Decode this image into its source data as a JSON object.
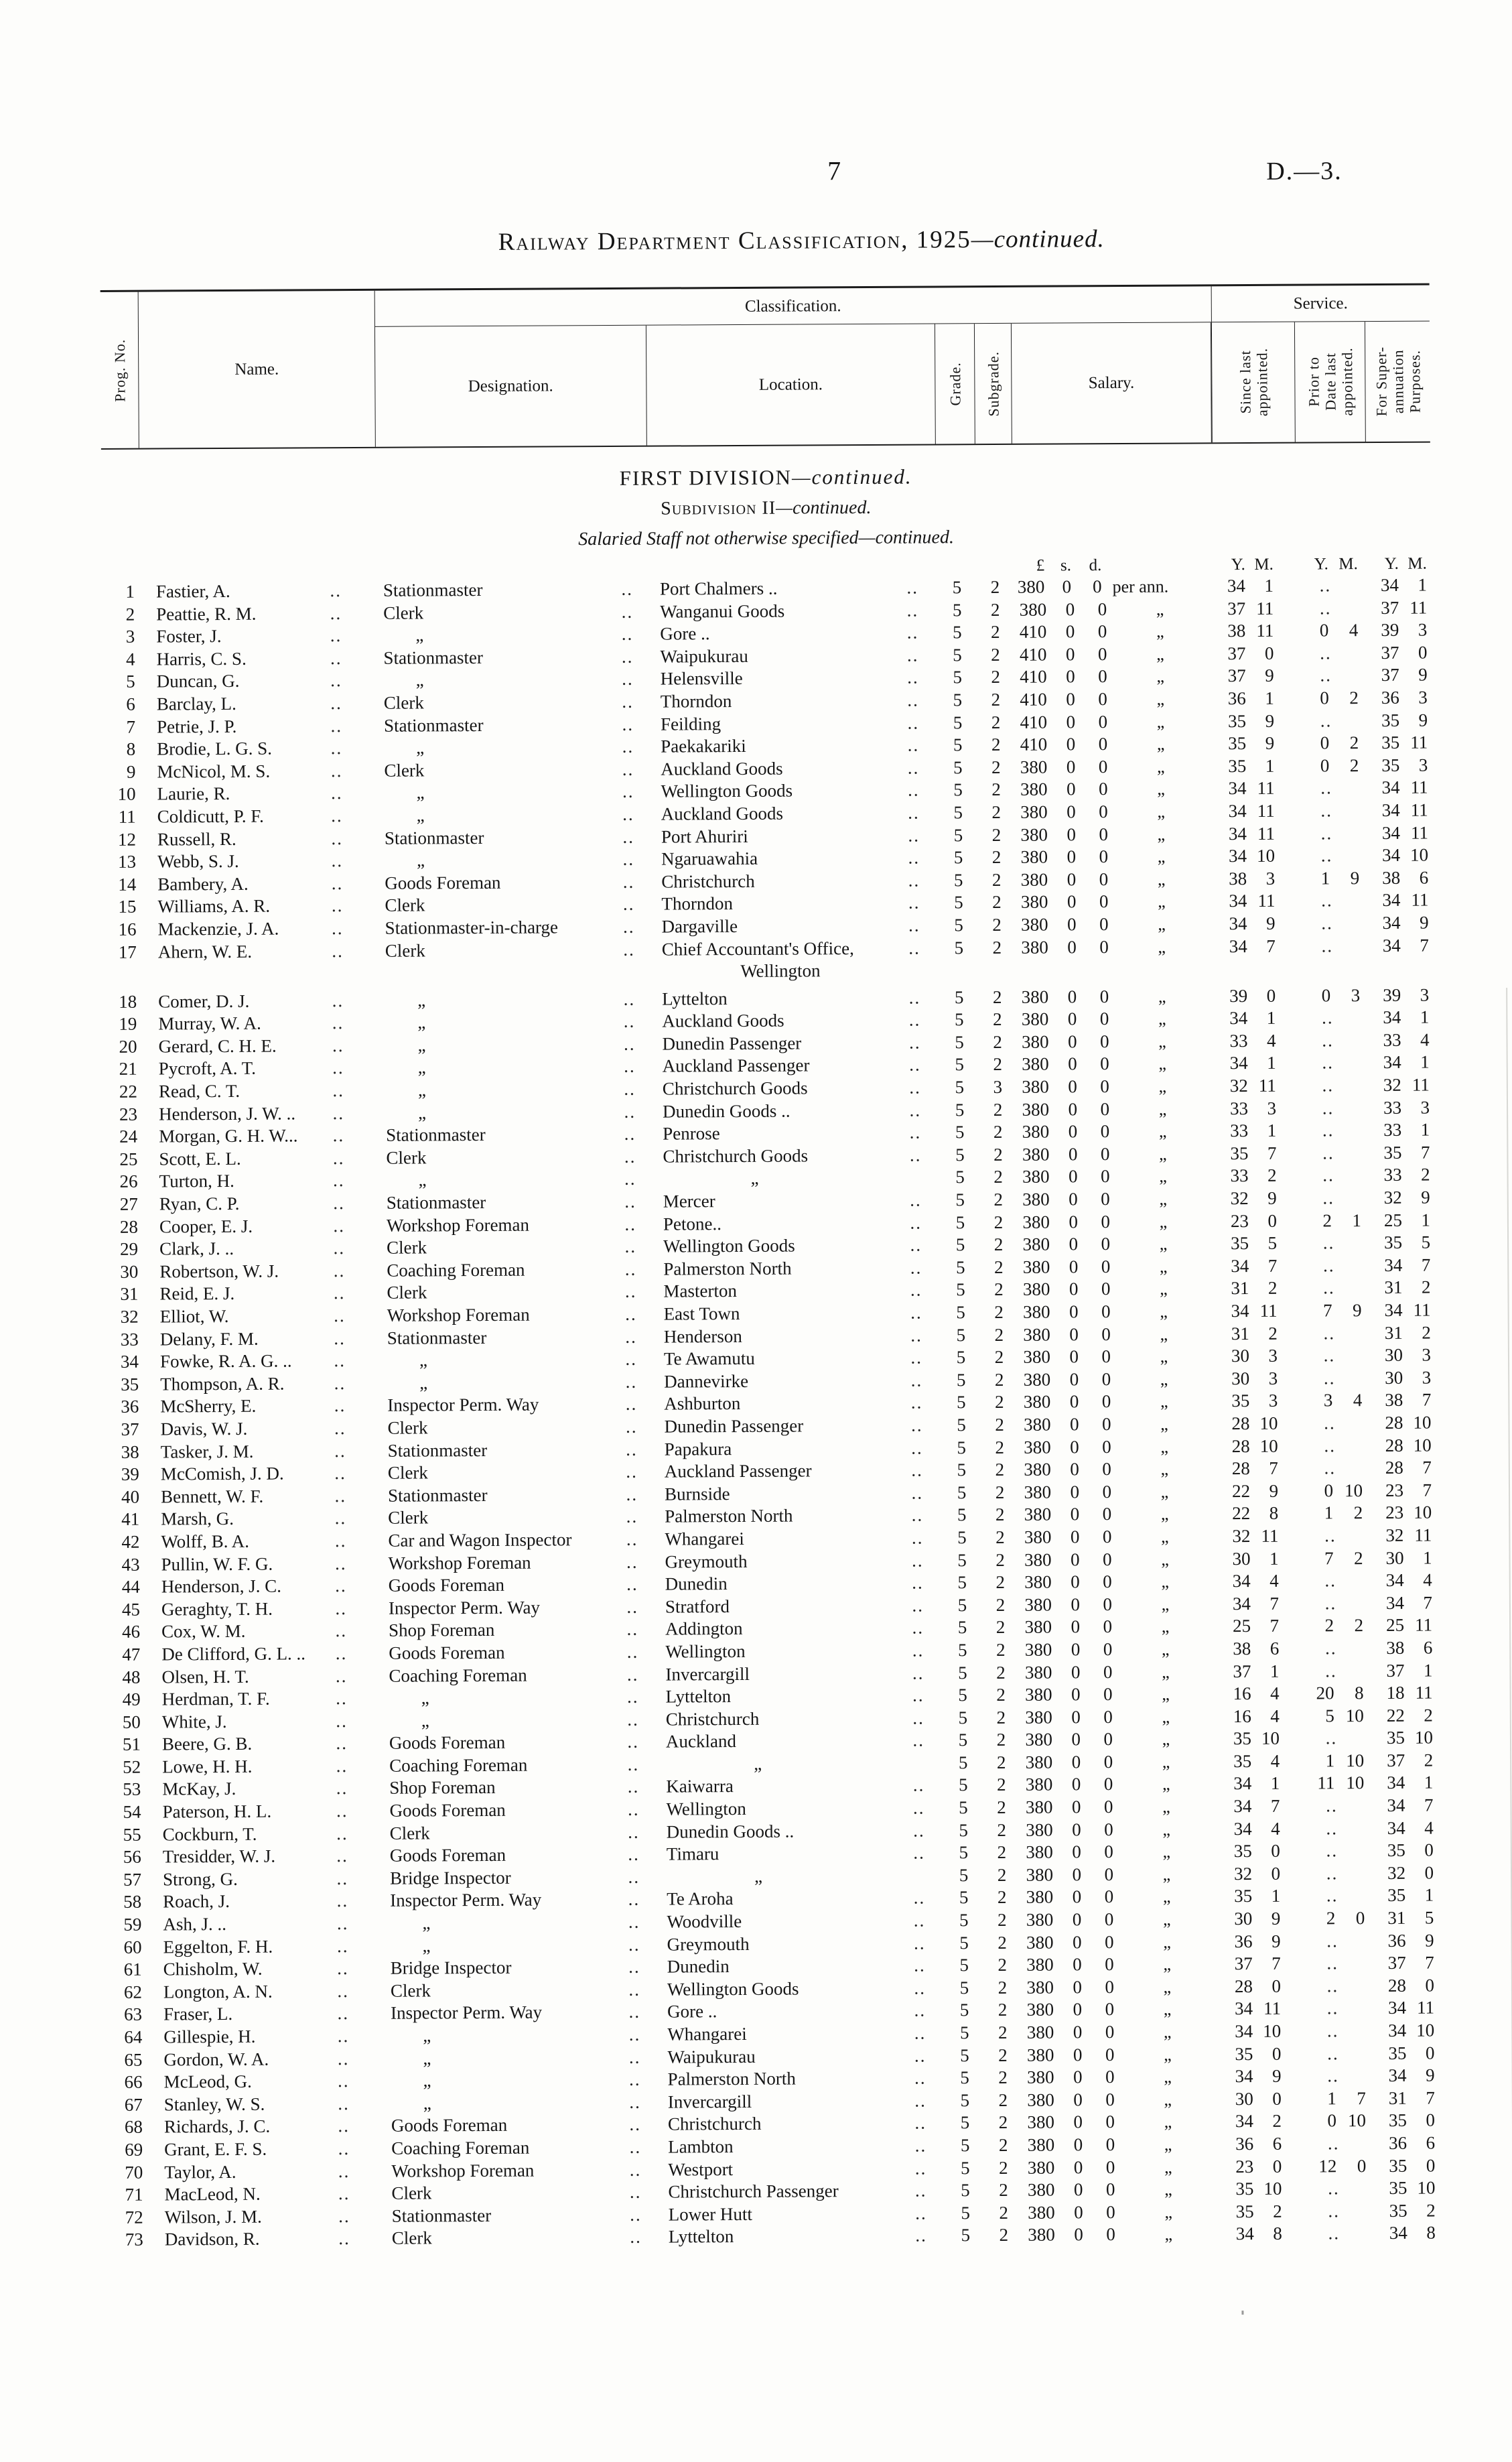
{
  "page": {
    "number": "7",
    "doc_ref": "D.—3."
  },
  "title": {
    "main": "Railway Department Classification, 1925",
    "continued": "—continued."
  },
  "headers": {
    "prog_no": "Prog. No.",
    "name": "Name.",
    "classification": "Classification.",
    "service": "Service.",
    "designation": "Designation.",
    "location": "Location.",
    "grade": "Grade.",
    "subgrade": "Subgrade.",
    "salary": "Salary.",
    "since_lines": [
      "Since last",
      "appointed."
    ],
    "prior_lines": [
      "Prior to",
      "Date last",
      "appointed."
    ],
    "super_lines": [
      "For Super-",
      "annuation",
      "Purposes."
    ]
  },
  "sections": {
    "division": "FIRST DIVISION",
    "division_cont": "—continued.",
    "subdivision": "Subdivision II",
    "subdivision_cont": "—continued.",
    "staff": "Salaried Staff not otherwise specified",
    "staff_cont": "—continued."
  },
  "units": {
    "currency": [
      "£",
      "s.",
      "d."
    ],
    "ym": [
      "Y.",
      "M."
    ]
  },
  "misc": {
    "dots": "..",
    "ditto": "„"
  },
  "rows": [
    [
      "1",
      "Fastier, A.",
      "Stationmaster",
      "Port Chalmers ..",
      "5",
      "2",
      "380",
      "0",
      "0",
      "per ann.",
      "34",
      "1",
      "..",
      "",
      "34",
      "1",
      ""
    ],
    [
      "2",
      "Peattie, R. M.",
      "Clerk",
      "Wanganui Goods",
      "5",
      "2",
      "380",
      "0",
      "0",
      "„",
      "37",
      "11",
      "..",
      "",
      "37",
      "11",
      ""
    ],
    [
      "3",
      "Foster, J.",
      "„",
      "Gore ..",
      "5",
      "2",
      "410",
      "0",
      "0",
      "„",
      "38",
      "11",
      "0",
      "4",
      "39",
      "3",
      ""
    ],
    [
      "4",
      "Harris, C. S.",
      "Stationmaster",
      "Waipukurau",
      "5",
      "2",
      "410",
      "0",
      "0",
      "„",
      "37",
      "0",
      "..",
      "",
      "37",
      "0",
      ""
    ],
    [
      "5",
      "Duncan, G.",
      "„",
      "Helensville",
      "5",
      "2",
      "410",
      "0",
      "0",
      "„",
      "37",
      "9",
      "..",
      "",
      "37",
      "9",
      ""
    ],
    [
      "6",
      "Barclay, L.",
      "Clerk",
      "Thorndon",
      "5",
      "2",
      "410",
      "0",
      "0",
      "„",
      "36",
      "1",
      "0",
      "2",
      "36",
      "3",
      ""
    ],
    [
      "7",
      "Petrie, J. P.",
      "Stationmaster",
      "Feilding",
      "5",
      "2",
      "410",
      "0",
      "0",
      "„",
      "35",
      "9",
      "..",
      "",
      "35",
      "9",
      ""
    ],
    [
      "8",
      "Brodie, L. G. S.",
      "„",
      "Paekakariki",
      "5",
      "2",
      "410",
      "0",
      "0",
      "„",
      "35",
      "9",
      "0",
      "2",
      "35",
      "11",
      ""
    ],
    [
      "9",
      "McNicol, M. S.",
      "Clerk",
      "Auckland Goods",
      "5",
      "2",
      "380",
      "0",
      "0",
      "„",
      "35",
      "1",
      "0",
      "2",
      "35",
      "3",
      ""
    ],
    [
      "10",
      "Laurie, R.",
      "„",
      "Wellington Goods",
      "5",
      "2",
      "380",
      "0",
      "0",
      "„",
      "34",
      "11",
      "..",
      "",
      "34",
      "11",
      ""
    ],
    [
      "11",
      "Coldicutt, P. F.",
      "„",
      "Auckland Goods",
      "5",
      "2",
      "380",
      "0",
      "0",
      "„",
      "34",
      "11",
      "..",
      "",
      "34",
      "11",
      ""
    ],
    [
      "12",
      "Russell, R.",
      "Stationmaster",
      "Port Ahuriri",
      "5",
      "2",
      "380",
      "0",
      "0",
      "„",
      "34",
      "11",
      "..",
      "",
      "34",
      "11",
      ""
    ],
    [
      "13",
      "Webb, S. J.",
      "„",
      "Ngaruawahia",
      "5",
      "2",
      "380",
      "0",
      "0",
      "„",
      "34",
      "10",
      "..",
      "",
      "34",
      "10",
      ""
    ],
    [
      "14",
      "Bambery, A.",
      "Goods Foreman",
      "Christchurch",
      "5",
      "2",
      "380",
      "0",
      "0",
      "„",
      "38",
      "3",
      "1",
      "9",
      "38",
      "6",
      ""
    ],
    [
      "15",
      "Williams, A. R.",
      "Clerk",
      "Thorndon",
      "5",
      "2",
      "380",
      "0",
      "0",
      "„",
      "34",
      "11",
      "..",
      "",
      "34",
      "11",
      ""
    ],
    [
      "16",
      "Mackenzie, J. A.",
      "Stationmaster-in-charge",
      "Dargaville",
      "5",
      "2",
      "380",
      "0",
      "0",
      "„",
      "34",
      "9",
      "..",
      "",
      "34",
      "9",
      ""
    ],
    [
      "17",
      "Ahern, W. E.",
      "Clerk",
      "Chief Accountant's Office,",
      "5",
      "2",
      "380",
      "0",
      "0",
      "„",
      "34",
      "7",
      "..",
      "",
      "34",
      "7",
      "Wellington"
    ],
    [
      "18",
      "Comer, D. J.",
      "„",
      "Lyttelton",
      "5",
      "2",
      "380",
      "0",
      "0",
      "„",
      "39",
      "0",
      "0",
      "3",
      "39",
      "3",
      ""
    ],
    [
      "19",
      "Murray, W. A.",
      "„",
      "Auckland Goods",
      "5",
      "2",
      "380",
      "0",
      "0",
      "„",
      "34",
      "1",
      "..",
      "",
      "34",
      "1",
      ""
    ],
    [
      "20",
      "Gerard, C. H. E.",
      "„",
      "Dunedin Passenger",
      "5",
      "2",
      "380",
      "0",
      "0",
      "„",
      "33",
      "4",
      "..",
      "",
      "33",
      "4",
      ""
    ],
    [
      "21",
      "Pycroft, A. T.",
      "„",
      "Auckland Passenger",
      "5",
      "2",
      "380",
      "0",
      "0",
      "„",
      "34",
      "1",
      "..",
      "",
      "34",
      "1",
      ""
    ],
    [
      "22",
      "Read, C. T.",
      "„",
      "Christchurch Goods",
      "5",
      "3",
      "380",
      "0",
      "0",
      "„",
      "32",
      "11",
      "..",
      "",
      "32",
      "11",
      ""
    ],
    [
      "23",
      "Henderson, J. W. ..",
      "„",
      "Dunedin Goods ..",
      "5",
      "2",
      "380",
      "0",
      "0",
      "„",
      "33",
      "3",
      "..",
      "",
      "33",
      "3",
      ""
    ],
    [
      "24",
      "Morgan, G. H. W...",
      "Stationmaster",
      "Penrose",
      "5",
      "2",
      "380",
      "0",
      "0",
      "„",
      "33",
      "1",
      "..",
      "",
      "33",
      "1",
      ""
    ],
    [
      "25",
      "Scott, E. L.",
      "Clerk",
      "Christchurch Goods",
      "5",
      "2",
      "380",
      "0",
      "0",
      "„",
      "35",
      "7",
      "..",
      "",
      "35",
      "7",
      ""
    ],
    [
      "26",
      "Turton, H.",
      "„",
      "„",
      "5",
      "2",
      "380",
      "0",
      "0",
      "„",
      "33",
      "2",
      "..",
      "",
      "33",
      "2",
      ""
    ],
    [
      "27",
      "Ryan, C. P.",
      "Stationmaster",
      "Mercer",
      "5",
      "2",
      "380",
      "0",
      "0",
      "„",
      "32",
      "9",
      "..",
      "",
      "32",
      "9",
      ""
    ],
    [
      "28",
      "Cooper, E. J.",
      "Workshop Foreman",
      "Petone..",
      "5",
      "2",
      "380",
      "0",
      "0",
      "„",
      "23",
      "0",
      "2",
      "1",
      "25",
      "1",
      ""
    ],
    [
      "29",
      "Clark, J. ..",
      "Clerk",
      "Wellington Goods",
      "5",
      "2",
      "380",
      "0",
      "0",
      "„",
      "35",
      "5",
      "..",
      "",
      "35",
      "5",
      ""
    ],
    [
      "30",
      "Robertson, W. J.",
      "Coaching Foreman",
      "Palmerston North",
      "5",
      "2",
      "380",
      "0",
      "0",
      "„",
      "34",
      "7",
      "..",
      "",
      "34",
      "7",
      ""
    ],
    [
      "31",
      "Reid, E. J.",
      "Clerk",
      "Masterton",
      "5",
      "2",
      "380",
      "0",
      "0",
      "„",
      "31",
      "2",
      "..",
      "",
      "31",
      "2",
      ""
    ],
    [
      "32",
      "Elliot, W.",
      "Workshop Foreman",
      "East Town",
      "5",
      "2",
      "380",
      "0",
      "0",
      "„",
      "34",
      "11",
      "7",
      "9",
      "34",
      "11",
      ""
    ],
    [
      "33",
      "Delany, F. M.",
      "Stationmaster",
      "Henderson",
      "5",
      "2",
      "380",
      "0",
      "0",
      "„",
      "31",
      "2",
      "..",
      "",
      "31",
      "2",
      ""
    ],
    [
      "34",
      "Fowke, R. A. G. ..",
      "„",
      "Te Awamutu",
      "5",
      "2",
      "380",
      "0",
      "0",
      "„",
      "30",
      "3",
      "..",
      "",
      "30",
      "3",
      ""
    ],
    [
      "35",
      "Thompson, A. R.",
      "„",
      "Dannevirke",
      "5",
      "2",
      "380",
      "0",
      "0",
      "„",
      "30",
      "3",
      "..",
      "",
      "30",
      "3",
      ""
    ],
    [
      "36",
      "McSherry, E.",
      "Inspector Perm. Way",
      "Ashburton",
      "5",
      "2",
      "380",
      "0",
      "0",
      "„",
      "35",
      "3",
      "3",
      "4",
      "38",
      "7",
      ""
    ],
    [
      "37",
      "Davis, W. J.",
      "Clerk",
      "Dunedin Passenger",
      "5",
      "2",
      "380",
      "0",
      "0",
      "„",
      "28",
      "10",
      "..",
      "",
      "28",
      "10",
      ""
    ],
    [
      "38",
      "Tasker, J. M.",
      "Stationmaster",
      "Papakura",
      "5",
      "2",
      "380",
      "0",
      "0",
      "„",
      "28",
      "10",
      "..",
      "",
      "28",
      "10",
      ""
    ],
    [
      "39",
      "McComish, J. D.",
      "Clerk",
      "Auckland Passenger",
      "5",
      "2",
      "380",
      "0",
      "0",
      "„",
      "28",
      "7",
      "..",
      "",
      "28",
      "7",
      ""
    ],
    [
      "40",
      "Bennett, W. F.",
      "Stationmaster",
      "Burnside",
      "5",
      "2",
      "380",
      "0",
      "0",
      "„",
      "22",
      "9",
      "0",
      "10",
      "23",
      "7",
      ""
    ],
    [
      "41",
      "Marsh, G.",
      "Clerk",
      "Palmerston North",
      "5",
      "2",
      "380",
      "0",
      "0",
      "„",
      "22",
      "8",
      "1",
      "2",
      "23",
      "10",
      ""
    ],
    [
      "42",
      "Wolff, B. A.",
      "Car and Wagon Inspector",
      "Whangarei",
      "5",
      "2",
      "380",
      "0",
      "0",
      "„",
      "32",
      "11",
      "..",
      "",
      "32",
      "11",
      ""
    ],
    [
      "43",
      "Pullin, W. F. G.",
      "Workshop Foreman",
      "Greymouth",
      "5",
      "2",
      "380",
      "0",
      "0",
      "„",
      "30",
      "1",
      "7",
      "2",
      "30",
      "1",
      ""
    ],
    [
      "44",
      "Henderson, J. C.",
      "Goods Foreman",
      "Dunedin",
      "5",
      "2",
      "380",
      "0",
      "0",
      "„",
      "34",
      "4",
      "..",
      "",
      "34",
      "4",
      ""
    ],
    [
      "45",
      "Geraghty, T. H.",
      "Inspector Perm. Way",
      "Stratford",
      "5",
      "2",
      "380",
      "0",
      "0",
      "„",
      "34",
      "7",
      "..",
      "",
      "34",
      "7",
      ""
    ],
    [
      "46",
      "Cox, W. M.",
      "Shop Foreman",
      "Addington",
      "5",
      "2",
      "380",
      "0",
      "0",
      "„",
      "25",
      "7",
      "2",
      "2",
      "25",
      "11",
      ""
    ],
    [
      "47",
      "De Clifford, G. L. ..",
      "Goods Foreman",
      "Wellington",
      "5",
      "2",
      "380",
      "0",
      "0",
      "„",
      "38",
      "6",
      "..",
      "",
      "38",
      "6",
      ""
    ],
    [
      "48",
      "Olsen, H. T.",
      "Coaching Foreman",
      "Invercargill",
      "5",
      "2",
      "380",
      "0",
      "0",
      "„",
      "37",
      "1",
      "..",
      "",
      "37",
      "1",
      ""
    ],
    [
      "49",
      "Herdman, T. F.",
      "„",
      "Lyttelton",
      "5",
      "2",
      "380",
      "0",
      "0",
      "„",
      "16",
      "4",
      "20",
      "8",
      "18",
      "11",
      ""
    ],
    [
      "50",
      "White, J.",
      "„",
      "Christchurch",
      "5",
      "2",
      "380",
      "0",
      "0",
      "„",
      "16",
      "4",
      "5",
      "10",
      "22",
      "2",
      ""
    ],
    [
      "51",
      "Beere, G. B.",
      "Goods Foreman",
      "Auckland",
      "5",
      "2",
      "380",
      "0",
      "0",
      "„",
      "35",
      "10",
      "..",
      "",
      "35",
      "10",
      ""
    ],
    [
      "52",
      "Lowe, H. H.",
      "Coaching Foreman",
      "„",
      "5",
      "2",
      "380",
      "0",
      "0",
      "„",
      "35",
      "4",
      "1",
      "10",
      "37",
      "2",
      ""
    ],
    [
      "53",
      "McKay, J.",
      "Shop Foreman",
      "Kaiwarra",
      "5",
      "2",
      "380",
      "0",
      "0",
      "„",
      "34",
      "1",
      "11",
      "10",
      "34",
      "1",
      ""
    ],
    [
      "54",
      "Paterson, H. L.",
      "Goods Foreman",
      "Wellington",
      "5",
      "2",
      "380",
      "0",
      "0",
      "„",
      "34",
      "7",
      "..",
      "",
      "34",
      "7",
      ""
    ],
    [
      "55",
      "Cockburn, T.",
      "Clerk",
      "Dunedin Goods ..",
      "5",
      "2",
      "380",
      "0",
      "0",
      "„",
      "34",
      "4",
      "..",
      "",
      "34",
      "4",
      ""
    ],
    [
      "56",
      "Tresidder, W. J.",
      "Goods Foreman",
      "Timaru",
      "5",
      "2",
      "380",
      "0",
      "0",
      "„",
      "35",
      "0",
      "..",
      "",
      "35",
      "0",
      ""
    ],
    [
      "57",
      "Strong, G.",
      "Bridge Inspector",
      "„",
      "5",
      "2",
      "380",
      "0",
      "0",
      "„",
      "32",
      "0",
      "..",
      "",
      "32",
      "0",
      ""
    ],
    [
      "58",
      "Roach, J.",
      "Inspector Perm. Way",
      "Te Aroha",
      "5",
      "2",
      "380",
      "0",
      "0",
      "„",
      "35",
      "1",
      "..",
      "",
      "35",
      "1",
      ""
    ],
    [
      "59",
      "Ash, J. ..",
      "„",
      "Woodville",
      "5",
      "2",
      "380",
      "0",
      "0",
      "„",
      "30",
      "9",
      "2",
      "0",
      "31",
      "5",
      ""
    ],
    [
      "60",
      "Eggelton, F. H.",
      "„",
      "Greymouth",
      "5",
      "2",
      "380",
      "0",
      "0",
      "„",
      "36",
      "9",
      "..",
      "",
      "36",
      "9",
      ""
    ],
    [
      "61",
      "Chisholm, W.",
      "Bridge Inspector",
      "Dunedin",
      "5",
      "2",
      "380",
      "0",
      "0",
      "„",
      "37",
      "7",
      "..",
      "",
      "37",
      "7",
      ""
    ],
    [
      "62",
      "Longton, A. N.",
      "Clerk",
      "Wellington Goods",
      "5",
      "2",
      "380",
      "0",
      "0",
      "„",
      "28",
      "0",
      "..",
      "",
      "28",
      "0",
      ""
    ],
    [
      "63",
      "Fraser, L.",
      "Inspector Perm. Way",
      "Gore ..",
      "5",
      "2",
      "380",
      "0",
      "0",
      "„",
      "34",
      "11",
      "..",
      "",
      "34",
      "11",
      ""
    ],
    [
      "64",
      "Gillespie, H.",
      "„",
      "Whangarei",
      "5",
      "2",
      "380",
      "0",
      "0",
      "„",
      "34",
      "10",
      "..",
      "",
      "34",
      "10",
      ""
    ],
    [
      "65",
      "Gordon, W. A.",
      "„",
      "Waipukurau",
      "5",
      "2",
      "380",
      "0",
      "0",
      "„",
      "35",
      "0",
      "..",
      "",
      "35",
      "0",
      ""
    ],
    [
      "66",
      "McLeod, G.",
      "„",
      "Palmerston North",
      "5",
      "2",
      "380",
      "0",
      "0",
      "„",
      "34",
      "9",
      "..",
      "",
      "34",
      "9",
      ""
    ],
    [
      "67",
      "Stanley, W. S.",
      "„",
      "Invercargill",
      "5",
      "2",
      "380",
      "0",
      "0",
      "„",
      "30",
      "0",
      "1",
      "7",
      "31",
      "7",
      ""
    ],
    [
      "68",
      "Richards, J. C.",
      "Goods Foreman",
      "Christchurch",
      "5",
      "2",
      "380",
      "0",
      "0",
      "„",
      "34",
      "2",
      "0",
      "10",
      "35",
      "0",
      ""
    ],
    [
      "69",
      "Grant, E. F. S.",
      "Coaching Foreman",
      "Lambton",
      "5",
      "2",
      "380",
      "0",
      "0",
      "„",
      "36",
      "6",
      "..",
      "",
      "36",
      "6",
      ""
    ],
    [
      "70",
      "Taylor, A.",
      "Workshop Foreman",
      "Westport",
      "5",
      "2",
      "380",
      "0",
      "0",
      "„",
      "23",
      "0",
      "12",
      "0",
      "35",
      "0",
      ""
    ],
    [
      "71",
      "MacLeod, N.",
      "Clerk",
      "Christchurch Passenger",
      "5",
      "2",
      "380",
      "0",
      "0",
      "„",
      "35",
      "10",
      "..",
      "",
      "35",
      "10",
      ""
    ],
    [
      "72",
      "Wilson, J. M.",
      "Stationmaster",
      "Lower Hutt",
      "5",
      "2",
      "380",
      "0",
      "0",
      "„",
      "35",
      "2",
      "..",
      "",
      "35",
      "2",
      ""
    ],
    [
      "73",
      "Davidson, R.",
      "Clerk",
      "Lyttelton",
      "5",
      "2",
      "380",
      "0",
      "0",
      "„",
      "34",
      "8",
      "..",
      "",
      "34",
      "8",
      ""
    ]
  ]
}
